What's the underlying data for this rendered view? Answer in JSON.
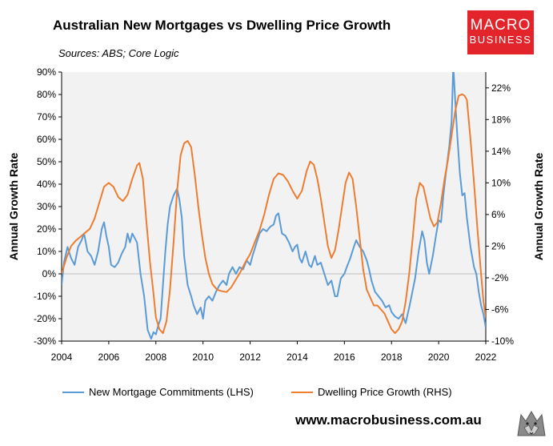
{
  "header": {
    "title": "Australian New Mortgages vs Dwelling Price Growth",
    "subtitle": "Sources: ABS; Core Logic"
  },
  "logo": {
    "line1": "MACRO",
    "line2": "BUSINESS"
  },
  "footer": {
    "url": "www.macrobusiness.com.au"
  },
  "chart_data": {
    "type": "line",
    "title": "Australian New Mortgages vs Dwelling Price Growth",
    "ylabel": "Annual Growth Rate",
    "y2label": "Annual Growth Rate",
    "xlim": [
      2004,
      2022
    ],
    "ylim": [
      -30,
      90
    ],
    "y2lim": [
      -10,
      24
    ],
    "x_ticks": [
      2004,
      2006,
      2008,
      2010,
      2012,
      2014,
      2016,
      2018,
      2020,
      2022
    ],
    "x_tick_labels": [
      "2004",
      "2006",
      "2008",
      "2010",
      "2012",
      "2014",
      "2016",
      "2018",
      "2020",
      "2022"
    ],
    "y_ticks": [
      -30,
      -20,
      -10,
      0,
      10,
      20,
      30,
      40,
      50,
      60,
      70,
      80,
      90
    ],
    "y_tick_labels": [
      "-30%",
      "-20%",
      "-10%",
      "0%",
      "10%",
      "20%",
      "30%",
      "40%",
      "50%",
      "60%",
      "70%",
      "80%",
      "90%"
    ],
    "y2_ticks": [
      -10,
      -6,
      -2,
      2,
      6,
      10,
      14,
      18,
      22
    ],
    "y2_tick_labels": [
      "-10%",
      "-6%",
      "-2%",
      "2%",
      "6%",
      "10%",
      "14%",
      "18%",
      "22%"
    ],
    "grid": false,
    "legend_position": "bottom",
    "colors": {
      "lhs": "#5b9bd5",
      "rhs": "#ed7d31",
      "plot_bg": "#f2f2f2"
    },
    "series": [
      {
        "name": "New Mortgage Commitments (LHS)",
        "axis": "left",
        "points": [
          [
            2004.0,
            -5
          ],
          [
            2004.1,
            5
          ],
          [
            2004.25,
            12
          ],
          [
            2004.4,
            7
          ],
          [
            2004.55,
            4
          ],
          [
            2004.7,
            12
          ],
          [
            2004.85,
            15
          ],
          [
            2004.95,
            18
          ],
          [
            2005.1,
            10
          ],
          [
            2005.25,
            8
          ],
          [
            2005.4,
            4
          ],
          [
            2005.55,
            10
          ],
          [
            2005.7,
            20
          ],
          [
            2005.8,
            23
          ],
          [
            2005.9,
            17
          ],
          [
            2006.0,
            12
          ],
          [
            2006.1,
            4
          ],
          [
            2006.25,
            3
          ],
          [
            2006.4,
            5
          ],
          [
            2006.55,
            9
          ],
          [
            2006.7,
            12
          ],
          [
            2006.8,
            18
          ],
          [
            2006.9,
            14
          ],
          [
            2007.0,
            18
          ],
          [
            2007.1,
            16
          ],
          [
            2007.2,
            14
          ],
          [
            2007.35,
            0
          ],
          [
            2007.5,
            -10
          ],
          [
            2007.65,
            -25
          ],
          [
            2007.8,
            -29
          ],
          [
            2007.9,
            -26
          ],
          [
            2008.0,
            -27
          ],
          [
            2008.1,
            -23
          ],
          [
            2008.2,
            -20
          ],
          [
            2008.3,
            -5
          ],
          [
            2008.4,
            10
          ],
          [
            2008.5,
            22
          ],
          [
            2008.6,
            30
          ],
          [
            2008.75,
            35
          ],
          [
            2008.9,
            38
          ],
          [
            2009.0,
            33
          ],
          [
            2009.1,
            25
          ],
          [
            2009.2,
            8
          ],
          [
            2009.35,
            -5
          ],
          [
            2009.5,
            -10
          ],
          [
            2009.6,
            -14
          ],
          [
            2009.75,
            -18
          ],
          [
            2009.9,
            -15
          ],
          [
            2010.0,
            -20
          ],
          [
            2010.1,
            -12
          ],
          [
            2010.25,
            -10
          ],
          [
            2010.4,
            -12
          ],
          [
            2010.55,
            -8
          ],
          [
            2010.7,
            -5
          ],
          [
            2010.85,
            -3
          ],
          [
            2011.0,
            -5
          ],
          [
            2011.1,
            0
          ],
          [
            2011.25,
            3
          ],
          [
            2011.4,
            0
          ],
          [
            2011.55,
            3
          ],
          [
            2011.7,
            2
          ],
          [
            2011.85,
            6
          ],
          [
            2012.0,
            4
          ],
          [
            2012.1,
            8
          ],
          [
            2012.25,
            13
          ],
          [
            2012.4,
            18
          ],
          [
            2012.55,
            20
          ],
          [
            2012.7,
            19
          ],
          [
            2012.85,
            21
          ],
          [
            2013.0,
            22
          ],
          [
            2013.1,
            26
          ],
          [
            2013.2,
            27
          ],
          [
            2013.35,
            18
          ],
          [
            2013.5,
            17
          ],
          [
            2013.65,
            14
          ],
          [
            2013.8,
            10
          ],
          [
            2013.9,
            12
          ],
          [
            2014.0,
            13
          ],
          [
            2014.1,
            7
          ],
          [
            2014.2,
            5
          ],
          [
            2014.35,
            10
          ],
          [
            2014.5,
            4
          ],
          [
            2014.6,
            3
          ],
          [
            2014.75,
            8
          ],
          [
            2014.85,
            4
          ],
          [
            2015.0,
            5
          ],
          [
            2015.15,
            0
          ],
          [
            2015.3,
            -5
          ],
          [
            2015.45,
            -3
          ],
          [
            2015.6,
            -10
          ],
          [
            2015.7,
            -10
          ],
          [
            2015.85,
            -2
          ],
          [
            2016.0,
            0
          ],
          [
            2016.1,
            3
          ],
          [
            2016.25,
            7
          ],
          [
            2016.4,
            12
          ],
          [
            2016.5,
            15
          ],
          [
            2016.65,
            12
          ],
          [
            2016.8,
            10
          ],
          [
            2016.95,
            6
          ],
          [
            2017.05,
            2
          ],
          [
            2017.15,
            -3
          ],
          [
            2017.3,
            -8
          ],
          [
            2017.45,
            -10
          ],
          [
            2017.6,
            -12
          ],
          [
            2017.75,
            -15
          ],
          [
            2017.9,
            -14
          ],
          [
            2018.0,
            -17
          ],
          [
            2018.15,
            -19
          ],
          [
            2018.3,
            -20
          ],
          [
            2018.45,
            -18
          ],
          [
            2018.6,
            -22
          ],
          [
            2018.75,
            -15
          ],
          [
            2018.85,
            -10
          ],
          [
            2019.0,
            -2
          ],
          [
            2019.15,
            10
          ],
          [
            2019.3,
            19
          ],
          [
            2019.4,
            15
          ],
          [
            2019.5,
            5
          ],
          [
            2019.6,
            0
          ],
          [
            2019.75,
            8
          ],
          [
            2019.9,
            18
          ],
          [
            2020.0,
            24
          ],
          [
            2020.1,
            23
          ],
          [
            2020.2,
            35
          ],
          [
            2020.3,
            44
          ],
          [
            2020.45,
            57
          ],
          [
            2020.55,
            68
          ],
          [
            2020.62,
            93
          ],
          [
            2020.7,
            78
          ],
          [
            2020.8,
            60
          ],
          [
            2020.9,
            45
          ],
          [
            2021.0,
            35
          ],
          [
            2021.1,
            36
          ],
          [
            2021.2,
            25
          ],
          [
            2021.35,
            12
          ],
          [
            2021.5,
            3
          ],
          [
            2021.6,
            0
          ],
          [
            2021.7,
            -8
          ],
          [
            2021.8,
            -14
          ],
          [
            2021.9,
            -18
          ],
          [
            2022.0,
            -24
          ]
        ]
      },
      {
        "name": "Dwelling Price Growth (RHS)",
        "axis": "right",
        "points": [
          [
            2004.0,
            -1.5
          ],
          [
            2004.2,
            0.5
          ],
          [
            2004.4,
            2.0
          ],
          [
            2004.6,
            2.7
          ],
          [
            2004.8,
            3.2
          ],
          [
            2005.0,
            3.7
          ],
          [
            2005.2,
            4.2
          ],
          [
            2005.4,
            5.5
          ],
          [
            2005.6,
            7.5
          ],
          [
            2005.8,
            9.5
          ],
          [
            2006.0,
            10.0
          ],
          [
            2006.2,
            9.5
          ],
          [
            2006.4,
            8.2
          ],
          [
            2006.6,
            7.7
          ],
          [
            2006.8,
            8.5
          ],
          [
            2007.0,
            10.5
          ],
          [
            2007.2,
            12.2
          ],
          [
            2007.3,
            12.5
          ],
          [
            2007.45,
            10.5
          ],
          [
            2007.6,
            5.0
          ],
          [
            2007.75,
            0.0
          ],
          [
            2007.9,
            -4.0
          ],
          [
            2008.0,
            -7.0
          ],
          [
            2008.15,
            -8.5
          ],
          [
            2008.3,
            -9.0
          ],
          [
            2008.45,
            -7.5
          ],
          [
            2008.6,
            -3.5
          ],
          [
            2008.75,
            2.5
          ],
          [
            2008.9,
            9.0
          ],
          [
            2009.05,
            13.5
          ],
          [
            2009.2,
            15.0
          ],
          [
            2009.35,
            15.3
          ],
          [
            2009.5,
            14.5
          ],
          [
            2009.65,
            11.0
          ],
          [
            2009.8,
            7.0
          ],
          [
            2009.95,
            3.5
          ],
          [
            2010.1,
            0.5
          ],
          [
            2010.25,
            -1.5
          ],
          [
            2010.4,
            -2.8
          ],
          [
            2010.6,
            -3.5
          ],
          [
            2010.8,
            -3.7
          ],
          [
            2011.0,
            -3.8
          ],
          [
            2011.2,
            -3.2
          ],
          [
            2011.4,
            -2.2
          ],
          [
            2011.6,
            -1.2
          ],
          [
            2011.8,
            0.0
          ],
          [
            2012.0,
            1.0
          ],
          [
            2012.2,
            2.5
          ],
          [
            2012.4,
            4.0
          ],
          [
            2012.6,
            6.0
          ],
          [
            2012.8,
            8.5
          ],
          [
            2013.0,
            10.5
          ],
          [
            2013.2,
            11.2
          ],
          [
            2013.4,
            11.0
          ],
          [
            2013.6,
            10.2
          ],
          [
            2013.8,
            9.0
          ],
          [
            2014.0,
            8.0
          ],
          [
            2014.2,
            9.0
          ],
          [
            2014.4,
            11.5
          ],
          [
            2014.55,
            12.7
          ],
          [
            2014.7,
            12.3
          ],
          [
            2014.85,
            10.5
          ],
          [
            2015.0,
            8.0
          ],
          [
            2015.15,
            5.0
          ],
          [
            2015.3,
            2.0
          ],
          [
            2015.45,
            0.5
          ],
          [
            2015.6,
            1.5
          ],
          [
            2015.75,
            4.0
          ],
          [
            2015.9,
            7.0
          ],
          [
            2016.05,
            10.0
          ],
          [
            2016.2,
            11.3
          ],
          [
            2016.35,
            10.5
          ],
          [
            2016.5,
            7.0
          ],
          [
            2016.65,
            3.0
          ],
          [
            2016.8,
            -1.0
          ],
          [
            2016.95,
            -3.5
          ],
          [
            2017.1,
            -4.5
          ],
          [
            2017.25,
            -5.5
          ],
          [
            2017.4,
            -5.5
          ],
          [
            2017.55,
            -6.0
          ],
          [
            2017.7,
            -6.5
          ],
          [
            2017.85,
            -7.5
          ],
          [
            2018.0,
            -8.5
          ],
          [
            2018.15,
            -9.0
          ],
          [
            2018.3,
            -8.5
          ],
          [
            2018.45,
            -7.5
          ],
          [
            2018.6,
            -5.0
          ],
          [
            2018.75,
            -1.5
          ],
          [
            2018.9,
            3.0
          ],
          [
            2019.05,
            8.0
          ],
          [
            2019.2,
            10.0
          ],
          [
            2019.35,
            9.5
          ],
          [
            2019.5,
            7.5
          ],
          [
            2019.65,
            5.5
          ],
          [
            2019.8,
            4.5
          ],
          [
            2019.95,
            5.0
          ],
          [
            2020.1,
            7.5
          ],
          [
            2020.25,
            10.5
          ],
          [
            2020.4,
            13.0
          ],
          [
            2020.55,
            16.0
          ],
          [
            2020.7,
            19.0
          ],
          [
            2020.85,
            21.0
          ],
          [
            2021.0,
            21.2
          ],
          [
            2021.1,
            21.0
          ],
          [
            2021.2,
            20.5
          ],
          [
            2021.35,
            15.5
          ],
          [
            2021.5,
            10.0
          ],
          [
            2021.65,
            4.0
          ],
          [
            2021.8,
            -1.5
          ],
          [
            2021.9,
            -5.0
          ],
          [
            2022.0,
            -7.0
          ]
        ]
      }
    ]
  }
}
